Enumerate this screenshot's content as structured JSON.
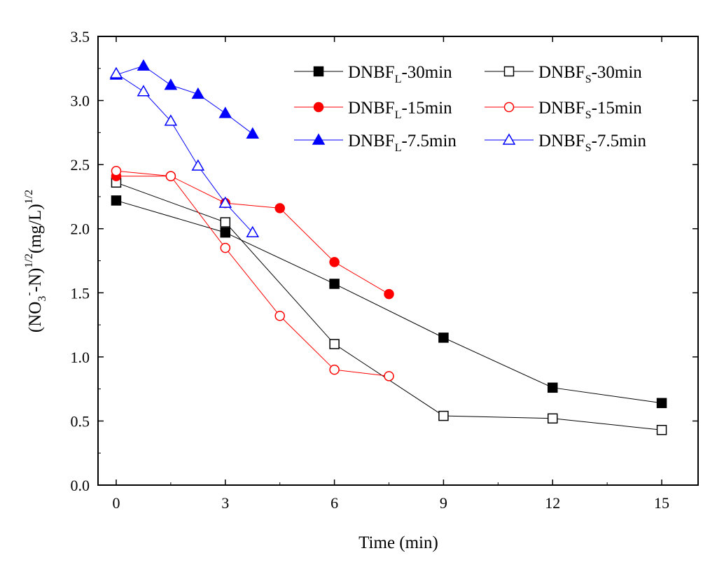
{
  "chart_data": {
    "type": "line",
    "xlabel": "Time (min)",
    "ylabel": {
      "open": "(NO",
      "sub": "3",
      "sup_minus": "-",
      "mid": "-N)",
      "exp1": "1/2",
      "units": "(mg/L)",
      "exp2": "1/2"
    },
    "xlim": [
      -0.5,
      16.0
    ],
    "ylim": [
      0.0,
      3.5
    ],
    "xticks": [
      0,
      3,
      6,
      9,
      12,
      15
    ],
    "xtick_labels": [
      "0",
      "3",
      "6",
      "9",
      "12",
      "15"
    ],
    "yticks": [
      0.0,
      0.5,
      1.0,
      1.5,
      2.0,
      2.5,
      3.0,
      3.5
    ],
    "ytick_labels": [
      "0.0",
      "0.5",
      "1.0",
      "1.5",
      "2.0",
      "2.5",
      "3.0",
      "3.5"
    ],
    "series": [
      {
        "name": "DNBFL-30min",
        "label_main": "DNBF",
        "label_sub": "L",
        "label_tail": "-30min",
        "color": "#000000",
        "marker": "square",
        "filled": true,
        "x": [
          0,
          3,
          6,
          9,
          12,
          15
        ],
        "y": [
          2.22,
          1.97,
          1.57,
          1.15,
          0.76,
          0.64
        ]
      },
      {
        "name": "DNBFS-30min",
        "label_main": "DNBF",
        "label_sub": "S",
        "label_tail": "-30min",
        "color": "#000000",
        "marker": "square",
        "filled": false,
        "x": [
          0,
          3,
          6,
          9,
          12,
          15
        ],
        "y": [
          2.36,
          2.05,
          1.1,
          0.54,
          0.52,
          0.43
        ]
      },
      {
        "name": "DNBFL-15min",
        "label_main": "DNBF",
        "label_sub": "L",
        "label_tail": "-15min",
        "color": "#ff0000",
        "marker": "circle",
        "filled": true,
        "x": [
          0,
          1.5,
          3,
          4.5,
          6,
          7.5
        ],
        "y": [
          2.41,
          2.41,
          2.2,
          2.16,
          1.74,
          1.49
        ]
      },
      {
        "name": "DNBFS-15min",
        "label_main": "DNBF",
        "label_sub": "S",
        "label_tail": "-15min",
        "color": "#ff0000",
        "marker": "circle",
        "filled": false,
        "x": [
          0,
          1.5,
          3,
          4.5,
          6,
          7.5
        ],
        "y": [
          2.45,
          2.41,
          1.85,
          1.32,
          0.9,
          0.85
        ]
      },
      {
        "name": "DNBFL-7.5min",
        "label_main": "DNBF",
        "label_sub": "L",
        "label_tail": "-7.5min",
        "color": "#0000ff",
        "marker": "triangle",
        "filled": true,
        "x": [
          0,
          0.75,
          1.5,
          2.25,
          3,
          3.75
        ],
        "y": [
          3.2,
          3.27,
          3.12,
          3.05,
          2.9,
          2.74
        ]
      },
      {
        "name": "DNBFS-7.5min",
        "label_main": "DNBF",
        "label_sub": "S",
        "label_tail": "-7.5min",
        "color": "#0000ff",
        "marker": "triangle",
        "filled": false,
        "x": [
          0,
          0.75,
          1.5,
          2.25,
          3,
          3.75
        ],
        "y": [
          3.21,
          3.07,
          2.84,
          2.49,
          2.2,
          1.97
        ]
      }
    ],
    "legend": "top-right",
    "grid": false
  }
}
